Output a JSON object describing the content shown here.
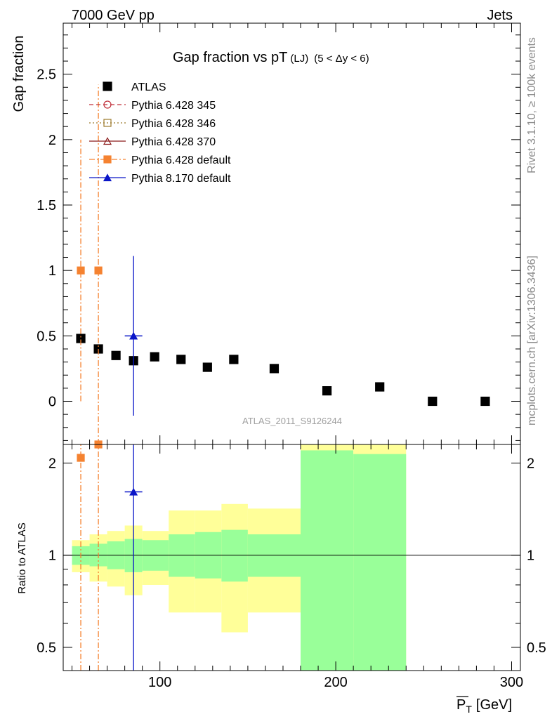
{
  "header": {
    "left": "7000 GeV pp",
    "right": "Jets"
  },
  "side_labels": {
    "rivet": "Rivet 3.1.10, ≥ 100k events",
    "mcplots": "mcplots.cern.ch [arXiv:1306.3436]"
  },
  "chart_data": [
    {
      "type": "scatter",
      "title": "Gap fraction vs pT",
      "title_sub1": "(LJ)",
      "title_sub2": "(5 < Δy < 6)",
      "ylabel": "Gap fraction",
      "xlabel": "P",
      "xlabel_sub": "T",
      "xlabel_unit": "[GeV]",
      "analysis_label": "ATLAS_2011_S9126244",
      "xlim": [
        45,
        305
      ],
      "ylim": [
        -0.33,
        2.89
      ],
      "y_ticks": [
        0,
        0.5,
        1,
        1.5,
        2,
        2.5
      ],
      "y_tick_labels": [
        "0",
        "0.5",
        "1",
        "1.5",
        "2",
        "2.5"
      ],
      "legend_position": "top-left",
      "series": [
        {
          "name": "ATLAS",
          "color": "#000000",
          "marker": "filled-square",
          "points": [
            {
              "x": 55,
              "y": 0.48
            },
            {
              "x": 65,
              "y": 0.4
            },
            {
              "x": 75,
              "y": 0.35
            },
            {
              "x": 85,
              "y": 0.31
            },
            {
              "x": 97,
              "y": 0.34
            },
            {
              "x": 112,
              "y": 0.32
            },
            {
              "x": 127,
              "y": 0.26
            },
            {
              "x": 142,
              "y": 0.32
            },
            {
              "x": 165,
              "y": 0.25
            },
            {
              "x": 195,
              "y": 0.08
            },
            {
              "x": 225,
              "y": 0.11
            },
            {
              "x": 255,
              "y": 0.0
            },
            {
              "x": 285,
              "y": 0.0
            }
          ]
        },
        {
          "name": "Pythia 6.428 345",
          "color": "#c0303a",
          "marker": "open-circle",
          "line": "dashed",
          "points": []
        },
        {
          "name": "Pythia 6.428 346",
          "color": "#9c7a2c",
          "marker": "open-square",
          "line": "dotted",
          "points": []
        },
        {
          "name": "Pythia 6.428 370",
          "color": "#8b1a1a",
          "marker": "open-triangle",
          "line": "solid",
          "points": []
        },
        {
          "name": "Pythia 6.428 default",
          "color": "#f58230",
          "marker": "filled-square",
          "line": "dashdot",
          "points": [
            {
              "x": 55,
              "y": 1.0,
              "ylo": 0.0,
              "yhi": 2.0
            },
            {
              "x": 65,
              "y": 1.0,
              "ylo": -0.33,
              "yhi": 2.42
            }
          ]
        },
        {
          "name": "Pythia 8.170 default",
          "color": "#0a16c8",
          "marker": "filled-triangle",
          "line": "solid",
          "points": [
            {
              "x": 85,
              "y": 0.5,
              "ylo": -0.11,
              "yhi": 1.11,
              "xlo": 80,
              "xhi": 90
            }
          ]
        }
      ]
    },
    {
      "type": "scatter",
      "ylabel": "Ratio to ATLAS",
      "y_scale": "log",
      "xlim": [
        45,
        305
      ],
      "ylim": [
        0.42,
        2.3
      ],
      "x_ticks": [
        100,
        200,
        300
      ],
      "x_tick_labels": [
        "100",
        "200",
        "300"
      ],
      "y_ticks": [
        0.5,
        1,
        2
      ],
      "y_tick_labels": [
        "0.5",
        "1",
        "2"
      ],
      "reference_line": 1,
      "bands": [
        {
          "x0": 50,
          "x1": 60,
          "stat": [
            0.93,
            1.07
          ],
          "total": [
            0.88,
            1.12
          ]
        },
        {
          "x0": 60,
          "x1": 70,
          "stat": [
            0.92,
            1.09
          ],
          "total": [
            0.82,
            1.17
          ]
        },
        {
          "x0": 70,
          "x1": 80,
          "stat": [
            0.9,
            1.11
          ],
          "total": [
            0.79,
            1.2
          ]
        },
        {
          "x0": 80,
          "x1": 90,
          "stat": [
            0.88,
            1.13
          ],
          "total": [
            0.74,
            1.25
          ]
        },
        {
          "x0": 90,
          "x1": 105,
          "stat": [
            0.89,
            1.12
          ],
          "total": [
            0.8,
            1.2
          ]
        },
        {
          "x0": 105,
          "x1": 120,
          "stat": [
            0.85,
            1.17
          ],
          "total": [
            0.65,
            1.4
          ]
        },
        {
          "x0": 120,
          "x1": 135,
          "stat": [
            0.84,
            1.19
          ],
          "total": [
            0.65,
            1.4
          ]
        },
        {
          "x0": 135,
          "x1": 150,
          "stat": [
            0.82,
            1.21
          ],
          "total": [
            0.56,
            1.47
          ]
        },
        {
          "x0": 150,
          "x1": 180,
          "stat": [
            0.85,
            1.17
          ],
          "total": [
            0.65,
            1.42
          ]
        },
        {
          "x0": 180,
          "x1": 210,
          "stat": [
            0.4,
            2.2
          ],
          "total": [
            0.4,
            2.45
          ]
        },
        {
          "x0": 210,
          "x1": 240,
          "stat": [
            0.4,
            2.14
          ],
          "total": [
            0.4,
            2.45
          ]
        }
      ],
      "band_colors": {
        "stat": "#99ff99",
        "total": "#ffff99"
      },
      "series": [
        {
          "name": "Pythia 6.428 default",
          "color": "#f58230",
          "points": [
            {
              "x": 55,
              "y": 2.08,
              "ylo": 0.4,
              "yhi": 2.3
            },
            {
              "x": 65,
              "y": 2.3,
              "ylo": 0.4,
              "yhi": 2.3
            }
          ]
        },
        {
          "name": "Pythia 8.170 default",
          "color": "#0a16c8",
          "points": [
            {
              "x": 85,
              "y": 1.61,
              "ylo": 0.4,
              "yhi": 2.3,
              "xlo": 80,
              "xhi": 90
            }
          ]
        }
      ]
    }
  ]
}
